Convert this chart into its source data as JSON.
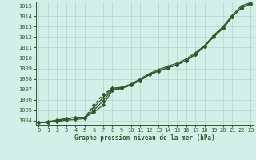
{
  "bg_color": "#d4eee8",
  "grid_color": "#b0d8cc",
  "line_color": "#2d5a2d",
  "xlabel": "Graphe pression niveau de la mer (hPa)",
  "ylim": [
    1003.6,
    1015.4
  ],
  "xlim": [
    -0.3,
    23.3
  ],
  "yticks": [
    1004,
    1005,
    1006,
    1007,
    1008,
    1009,
    1010,
    1011,
    1012,
    1013,
    1014,
    1015
  ],
  "xticks": [
    0,
    1,
    2,
    3,
    4,
    5,
    6,
    7,
    8,
    9,
    10,
    11,
    12,
    13,
    14,
    15,
    16,
    17,
    18,
    19,
    20,
    21,
    22,
    23
  ],
  "line1": [
    1003.8,
    1003.9,
    1004.0,
    1004.2,
    1004.3,
    1004.3,
    1005.3,
    1006.2,
    1007.1,
    1007.2,
    1007.5,
    1008.0,
    1008.5,
    1008.9,
    1009.2,
    1009.5,
    1009.9,
    1010.5,
    1011.2,
    1012.2,
    1013.0,
    1014.1,
    1015.0,
    1015.3
  ],
  "line2": [
    1003.8,
    1003.85,
    1003.9,
    1004.05,
    1004.1,
    1004.2,
    1005.0,
    1005.9,
    1007.0,
    1007.1,
    1007.4,
    1007.85,
    1008.4,
    1008.75,
    1009.05,
    1009.35,
    1009.75,
    1010.35,
    1011.1,
    1012.05,
    1012.85,
    1013.95,
    1014.8,
    1015.2
  ],
  "line3": [
    1003.8,
    1003.85,
    1003.95,
    1004.15,
    1004.25,
    1004.3,
    1005.5,
    1006.5,
    1007.1,
    1007.15,
    1007.4,
    1007.85,
    1008.4,
    1008.75,
    1009.05,
    1009.35,
    1009.75,
    1010.35,
    1011.1,
    1012.05,
    1012.85,
    1013.95,
    1014.8,
    1015.2
  ],
  "line4": [
    1003.8,
    1003.9,
    1004.05,
    1004.2,
    1004.3,
    1004.3,
    1004.8,
    1005.5,
    1006.9,
    1007.1,
    1007.4,
    1007.85,
    1008.4,
    1008.75,
    1009.05,
    1009.35,
    1009.75,
    1010.35,
    1011.1,
    1012.05,
    1012.85,
    1013.95,
    1014.8,
    1015.2
  ]
}
